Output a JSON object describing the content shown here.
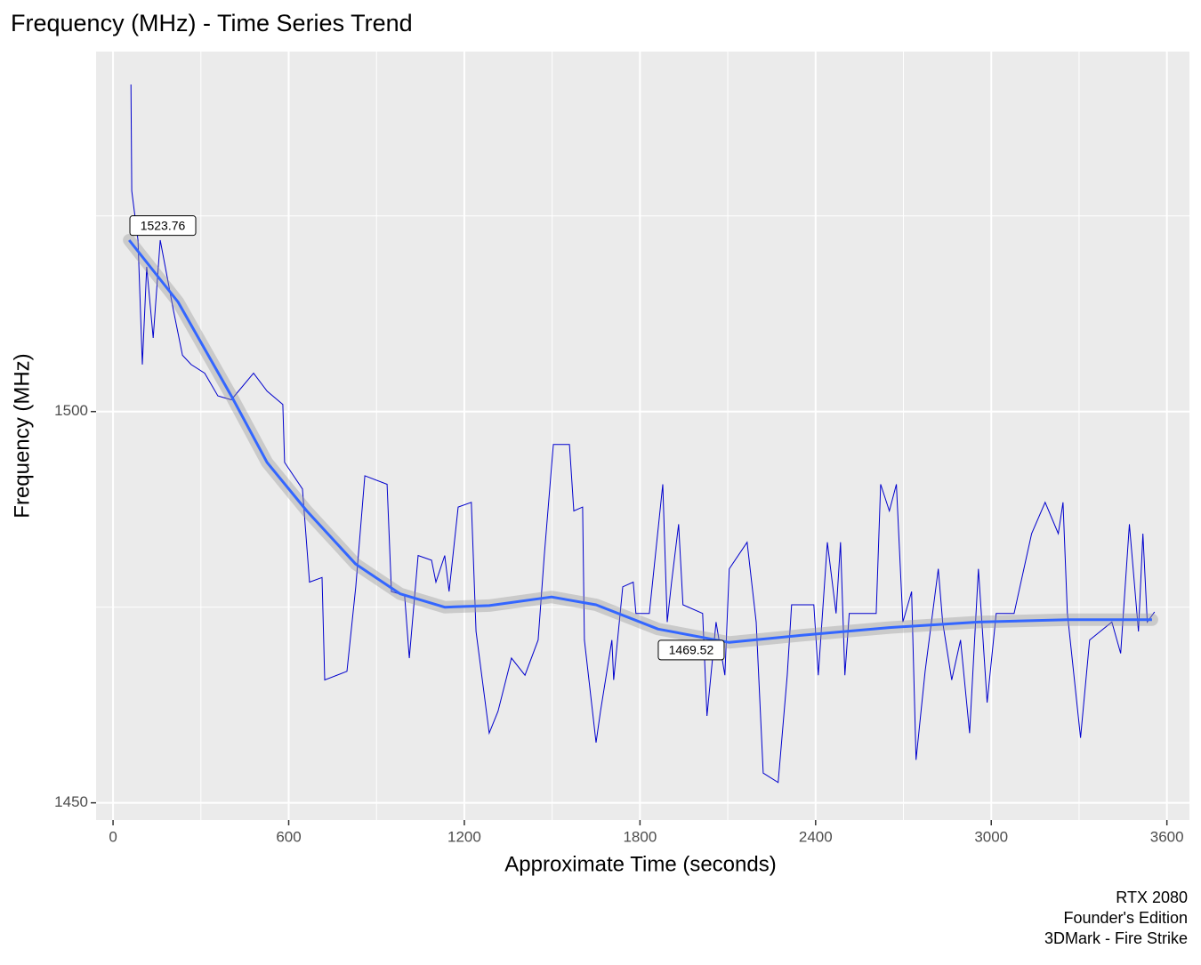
{
  "chart_data": {
    "type": "line",
    "title": "Frequency (MHz) - Time Series Trend",
    "x_label": "Approximate Time (seconds)",
    "y_label": "Frequency (MHz)",
    "caption": [
      "RTX 2080",
      "Founder's Edition",
      "3DMark - Fire Strike"
    ],
    "x": [
      61,
      64,
      85,
      100,
      115,
      137,
      161,
      207,
      237,
      267,
      313,
      358,
      404,
      480,
      526,
      580,
      586,
      647,
      671,
      714,
      723,
      799,
      829,
      860,
      936,
      951,
      996,
      1012,
      1042,
      1088,
      1103,
      1133,
      1148,
      1179,
      1224,
      1240,
      1285,
      1315,
      1361,
      1407,
      1452,
      1473,
      1504,
      1559,
      1574,
      1604,
      1610,
      1650,
      1665,
      1704,
      1710,
      1741,
      1777,
      1786,
      1832,
      1878,
      1893,
      1908,
      1932,
      1947,
      2014,
      2029,
      2060,
      2090,
      2105,
      2166,
      2197,
      2221,
      2272,
      2303,
      2318,
      2394,
      2409,
      2440,
      2470,
      2485,
      2500,
      2515,
      2607,
      2622,
      2652,
      2676,
      2698,
      2728,
      2743,
      2774,
      2819,
      2834,
      2865,
      2895,
      2926,
      2956,
      2986,
      3017,
      3078,
      3138,
      3184,
      3229,
      3245,
      3260,
      3305,
      3336,
      3412,
      3442,
      3472,
      3503,
      3518,
      3533,
      3558
    ],
    "values": [
      1541.8,
      1528.2,
      1521.9,
      1506.0,
      1518.5,
      1509.4,
      1521.9,
      1512.8,
      1507.2,
      1506.0,
      1504.9,
      1502.0,
      1501.5,
      1504.9,
      1502.6,
      1500.9,
      1493.5,
      1490.1,
      1478.2,
      1478.8,
      1465.7,
      1466.8,
      1477.6,
      1491.8,
      1490.7,
      1477.0,
      1476.5,
      1468.5,
      1481.6,
      1481.0,
      1478.2,
      1481.6,
      1477.0,
      1487.8,
      1488.4,
      1471.9,
      1458.9,
      1461.7,
      1468.5,
      1466.3,
      1470.8,
      1481.6,
      1495.8,
      1495.8,
      1487.3,
      1487.8,
      1470.8,
      1457.7,
      1461.7,
      1470.8,
      1465.7,
      1477.6,
      1478.2,
      1474.2,
      1474.2,
      1490.7,
      1473.1,
      1478.2,
      1485.6,
      1475.3,
      1474.2,
      1461.1,
      1473.1,
      1466.3,
      1479.9,
      1483.3,
      1473.1,
      1453.8,
      1452.6,
      1466.3,
      1475.3,
      1475.3,
      1466.3,
      1483.3,
      1474.2,
      1483.3,
      1466.3,
      1474.2,
      1474.2,
      1490.7,
      1487.3,
      1490.7,
      1473.1,
      1477.0,
      1455.5,
      1466.8,
      1479.9,
      1473.1,
      1465.7,
      1470.8,
      1458.9,
      1479.9,
      1462.8,
      1474.2,
      1474.2,
      1484.4,
      1488.4,
      1484.4,
      1488.4,
      1474.2,
      1458.3,
      1470.8,
      1473.1,
      1469.1,
      1485.6,
      1471.9,
      1484.4,
      1473.1,
      1474.4
    ],
    "color": "#0000cd",
    "trend_x": [
      55,
      222,
      404,
      526,
      662,
      829,
      981,
      1133,
      1285,
      1498,
      1650,
      1862,
      2105,
      2349,
      2652,
      2956,
      3260,
      3549
    ],
    "trend_values": [
      1521.9,
      1514.0,
      1502.0,
      1493.5,
      1487.3,
      1480.5,
      1476.7,
      1475.0,
      1475.2,
      1476.3,
      1475.3,
      1472.2,
      1470.5,
      1471.4,
      1472.4,
      1473.1,
      1473.4,
      1473.4
    ],
    "trend_color": "#3366ff",
    "annotations": [
      {
        "x": 170,
        "y": 1523.76
      },
      {
        "x": 1975,
        "y": 1469.52
      }
    ],
    "xlim": [
      -58,
      3677
    ],
    "ylim": [
      1447.8,
      1546
    ],
    "xticks": [
      0,
      600,
      1200,
      1800,
      2400,
      3000,
      3600
    ],
    "yticks": [
      1450,
      1500
    ],
    "minor_xticks": [
      300,
      900,
      1500,
      2100,
      2700,
      3300
    ],
    "minor_yticks": [
      1475,
      1525
    ],
    "grid": true
  }
}
